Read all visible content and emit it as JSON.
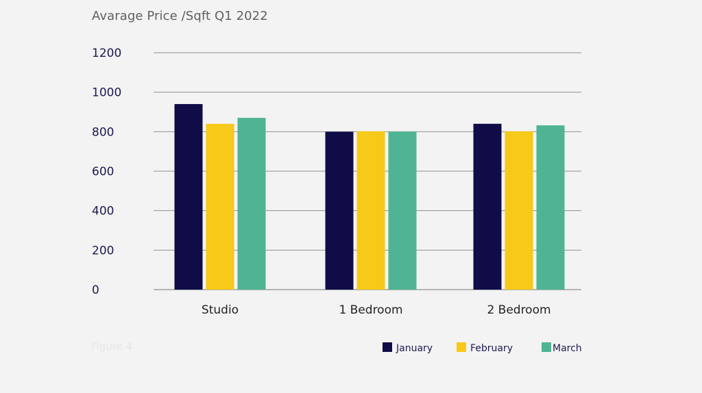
{
  "title": "Avarage Price /Sqft Q1 2022",
  "caption": "Figure 4",
  "chart_data": {
    "type": "bar",
    "title": "Avarage Price /Sqft Q1 2022",
    "xlabel": "",
    "ylabel": "",
    "categories": [
      "Studio",
      "1 Bedroom",
      "2 Bedroom"
    ],
    "series": [
      {
        "name": "January",
        "values": [
          940,
          800,
          840
        ],
        "color": "#0f0c47"
      },
      {
        "name": "February",
        "values": [
          840,
          802,
          802
        ],
        "color": "#f7c918"
      },
      {
        "name": "March",
        "values": [
          870,
          800,
          832
        ],
        "color": "#4fb493"
      }
    ],
    "ylim": [
      0,
      1200
    ],
    "yticks": [
      0,
      200,
      400,
      600,
      800,
      1000,
      1200
    ],
    "grid": true,
    "legend": "bottom-right",
    "colors": {
      "background": "#f3f3f3",
      "grid": "#8f8f8f",
      "axis_text": "#1c1a52",
      "category_text": "#222222",
      "title": "#5f5f5f"
    }
  }
}
